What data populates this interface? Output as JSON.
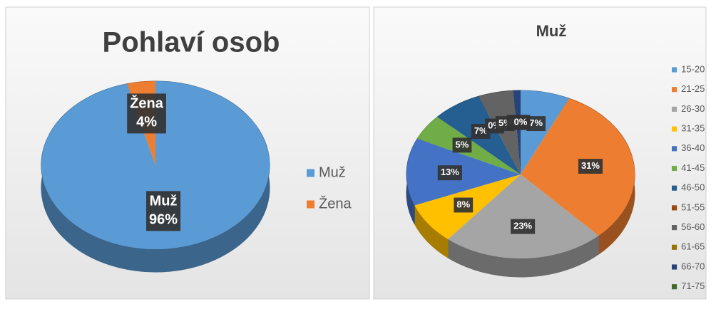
{
  "chart_data": [
    {
      "type": "pie",
      "title": "Pohlaví osob",
      "categories": [
        "Muž",
        "Žena"
      ],
      "values": [
        96,
        4
      ],
      "value_labels": [
        "96%",
        "4%"
      ],
      "colors": [
        "#5b9bd5",
        "#ed7d31"
      ],
      "legend": "right"
    },
    {
      "type": "pie",
      "title": "Muž",
      "categories": [
        "15-20",
        "21-25",
        "26-30",
        "31-35",
        "36-40",
        "41-45",
        "46-50",
        "51-55",
        "56-60",
        "61-65",
        "66-70",
        "71-75"
      ],
      "values": [
        7,
        31,
        23,
        8,
        13,
        5,
        7,
        0,
        5,
        0,
        1,
        0
      ],
      "value_labels": [
        "7%",
        "31%",
        "23%",
        "8%",
        "13%",
        "5%",
        "7%",
        "0%",
        "5%",
        "0%",
        "1%",
        "0%"
      ],
      "colors": [
        "#5b9bd5",
        "#ed7d31",
        "#a5a5a5",
        "#ffc000",
        "#4472c4",
        "#70ad47",
        "#255e91",
        "#9e480e",
        "#636363",
        "#997300",
        "#264478",
        "#43682b"
      ],
      "legend": "right"
    }
  ]
}
